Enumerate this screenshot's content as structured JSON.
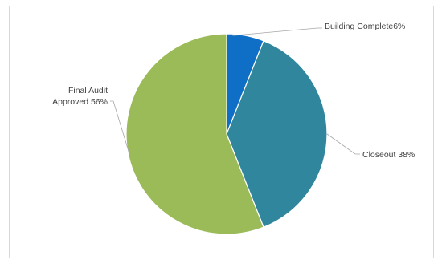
{
  "chart_data": {
    "type": "pie",
    "title": "",
    "slices": [
      {
        "label": "Building Complete",
        "value": 6,
        "value_label": "6%",
        "color": "#0f6fc6"
      },
      {
        "label": "Closeout",
        "value": 38,
        "value_label": "38%",
        "color": "#30879d"
      },
      {
        "label": "Final Audit Approved",
        "value": 56,
        "value_label": "56%",
        "color": "#9bbb59"
      }
    ],
    "legend": "none",
    "data_labels": "outside with leader lines"
  }
}
